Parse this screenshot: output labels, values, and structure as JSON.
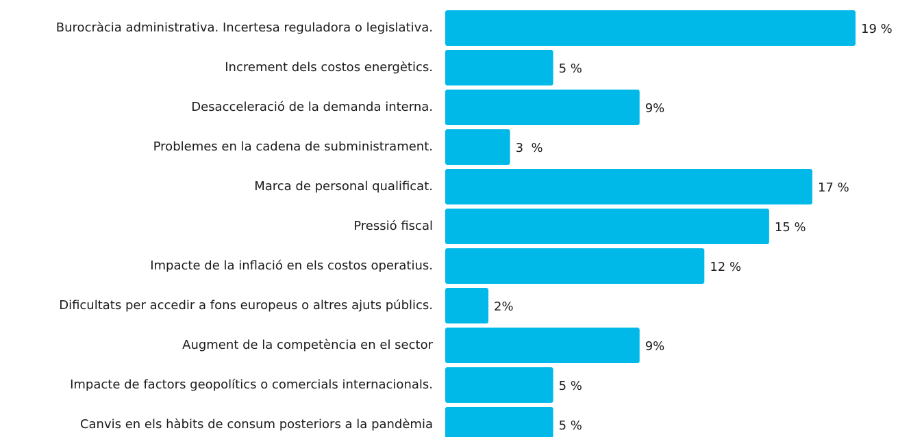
{
  "chart_data": {
    "type": "hbar",
    "categories": [
      "Burocràcia administrativa. Incertesa reguladora o legislativa.",
      "Increment dels costos energètics.",
      "Desacceleració de la demanda interna.",
      "Problemes en la cadena de subministrament.",
      "Marca de personal qualificat.",
      "Pressió fiscal",
      "Impacte de la inflació en els costos operatius.",
      "Dificultats per accedir a fons europeus o altres ajuts públics.",
      "Augment de la competència en el sector",
      "Impacte de factors geopolítics o comercials internacionals.",
      "Canvis en els hàbits de consum posteriors a la pandèmia"
    ],
    "values": [
      19,
      5,
      9,
      3,
      17,
      15,
      12,
      2,
      9,
      5,
      5
    ],
    "value_labels": [
      "19 %",
      "5 %",
      "9%",
      "3  %",
      "17 %",
      "15 %",
      "12 %",
      "2%",
      "9%",
      "5 %",
      "5 %"
    ],
    "color": "#00b9e8"
  }
}
